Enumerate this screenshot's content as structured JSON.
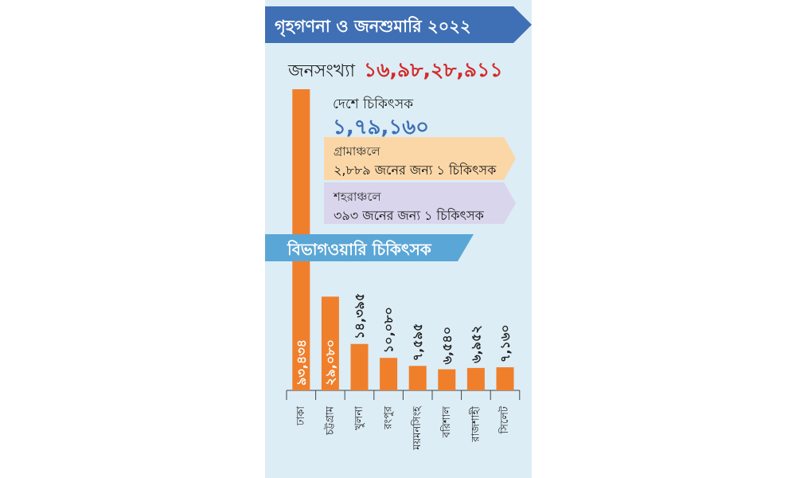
{
  "header": {
    "title": "গৃহগণনা ও জনশুমারি ২০২২"
  },
  "population": {
    "label": "জনসংখ্যা",
    "value": "১৬,৯৮,২৮,৯১১"
  },
  "doctors": {
    "label": "দেশে চিকিৎসক",
    "value": "১,৭৯,১৬০"
  },
  "rural": {
    "title": "গ্রামাঞ্চলে",
    "text": "২,৮৮৯ জনের জন্য ১ চিকিৎসক"
  },
  "urban": {
    "title": "শহরাঞ্চলে",
    "text": "৩৯৩ জনের জন্য ১ চিকিৎসক"
  },
  "section": {
    "title": "বিভাগওয়ারি চিকিৎসক"
  },
  "colors": {
    "bar": "#f07f2c",
    "header": "#3f6fb5",
    "banner": "#5aa6d6",
    "panel": "#dcedf5",
    "rural_box": "#fbd7a8",
    "urban_box": "#d8d5ec",
    "population_value": "#d42a2a"
  },
  "chart_data": {
    "type": "bar",
    "title": "বিভাগওয়ারি চিকিৎসক",
    "categories": [
      "ঢাকা",
      "চট্টগ্রাম",
      "খুলনা",
      "রংপুর",
      "ময়মনসিংহ",
      "বরিশাল",
      "রাজশাহী",
      "সিলেট"
    ],
    "values": [
      93434,
      29080,
      14395,
      10080,
      7595,
      6540,
      6952,
      7160
    ],
    "value_labels": [
      "৯৩,৪৩৪",
      "২৯,০৮০",
      "১৪,৩৯৫",
      "১০,০৮০",
      "৭,৫৯৫",
      "৬,৫৪০",
      "৬,৯৫২",
      "৭,১৬০"
    ],
    "grid": false,
    "legend": "none"
  }
}
